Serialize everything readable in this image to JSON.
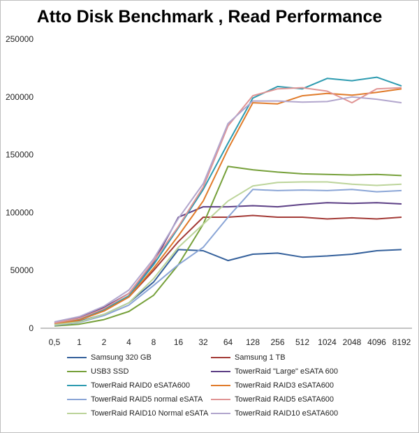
{
  "chart_data": {
    "type": "line",
    "title": "Atto Disk Benchmark , Read Performance",
    "xlabel": "",
    "ylabel": "",
    "categories": [
      "0,5",
      "1",
      "2",
      "4",
      "8",
      "16",
      "32",
      "64",
      "128",
      "256",
      "512",
      "1024",
      "2048",
      "4096",
      "8192"
    ],
    "ylim": [
      0,
      250000
    ],
    "yticks": [
      "0",
      "50000",
      "100000",
      "150000",
      "200000",
      "250000"
    ],
    "grid": false,
    "legend_position": "bottom",
    "series": [
      {
        "name": "Samsung 320 GB",
        "color": "#34609b",
        "values": [
          3000,
          6000,
          12000,
          22000,
          40000,
          68000,
          67000,
          58500,
          64000,
          65000,
          61500,
          62500,
          64000,
          67000,
          68000
        ]
      },
      {
        "name": "Samsung 1 TB",
        "color": "#a33a36",
        "values": [
          4000,
          8000,
          15000,
          27000,
          50000,
          75000,
          96000,
          96000,
          97500,
          96000,
          96000,
          94500,
          95500,
          94500,
          96000
        ]
      },
      {
        "name": "USB3 SSD",
        "color": "#76a03a",
        "values": [
          2000,
          3500,
          7500,
          14500,
          28500,
          55000,
          90000,
          140000,
          137000,
          135000,
          133500,
          133000,
          132500,
          133000,
          132000
        ]
      },
      {
        "name": "TowerRaid \"Large\" eSATA 600",
        "color": "#5c3f85",
        "values": [
          5000,
          9000,
          18000,
          30000,
          57000,
          96000,
          105000,
          105000,
          106000,
          105000,
          107000,
          108500,
          108000,
          108500,
          107500
        ]
      },
      {
        "name": "TowerRaid RAID0 eSATA600",
        "color": "#2d9bb0",
        "values": [
          4000,
          7500,
          16000,
          28000,
          55000,
          87000,
          120000,
          160000,
          199000,
          209000,
          207000,
          216000,
          214000,
          217000,
          209500
        ]
      },
      {
        "name": "TowerRaid RAID3 eSATA600",
        "color": "#e07b2a",
        "values": [
          3500,
          7000,
          15000,
          27000,
          52000,
          80000,
          110000,
          155000,
          195000,
          194000,
          201000,
          203000,
          201500,
          204000,
          207000
        ]
      },
      {
        "name": "TowerRaid RAID5 normal eSATA",
        "color": "#8aa5d6",
        "values": [
          2500,
          5000,
          11000,
          20000,
          37000,
          55000,
          70000,
          96000,
          120000,
          119000,
          119500,
          119000,
          120000,
          118000,
          119000
        ]
      },
      {
        "name": "TowerRaid RAID5 eSATA600",
        "color": "#e09494",
        "values": [
          4500,
          8500,
          17000,
          30000,
          58000,
          88000,
          122000,
          175000,
          201000,
          207000,
          208000,
          205000,
          195000,
          207000,
          208000
        ]
      },
      {
        "name": "TowerRaid RAID10 Normal eSATA",
        "color": "#bcd49a",
        "values": [
          3000,
          5500,
          12000,
          22000,
          43000,
          70000,
          90000,
          110000,
          123000,
          126000,
          126500,
          126500,
          124500,
          123500,
          124500
        ]
      },
      {
        "name": "TowerRaid RAID10 eSATA600",
        "color": "#b2a6cd",
        "values": [
          5500,
          10000,
          19000,
          33000,
          60000,
          95000,
          125000,
          177000,
          196500,
          196500,
          195500,
          196000,
          200000,
          198000,
          195000
        ]
      }
    ]
  }
}
